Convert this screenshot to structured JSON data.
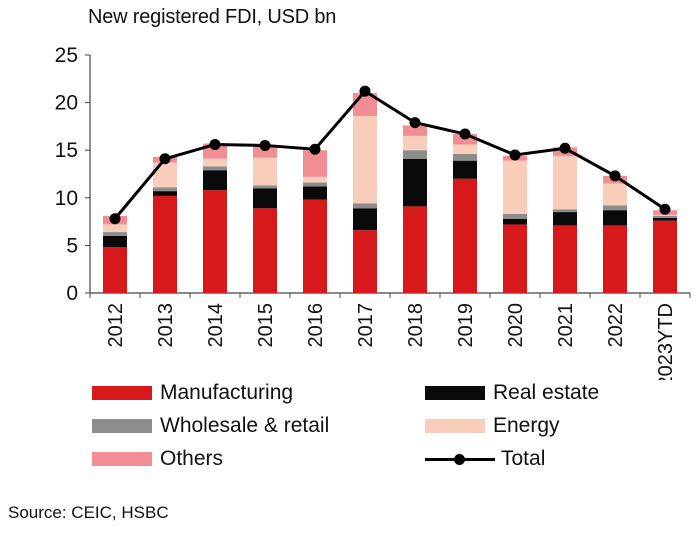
{
  "chart_data": {
    "type": "bar",
    "title": "New registered  FDI, USD bn",
    "categories": [
      "2012",
      "2013",
      "2014",
      "2015",
      "2016",
      "2017",
      "2018",
      "2019",
      "2020",
      "2021",
      "2022",
      "2023YTD"
    ],
    "ylim": [
      0,
      25
    ],
    "yticks": [
      0,
      5,
      10,
      15,
      20,
      25
    ],
    "grid": false,
    "series": [
      {
        "name": "Manufacturing",
        "kind": "bar",
        "color": "#d7191c",
        "values": [
          4.8,
          10.2,
          10.8,
          8.9,
          9.8,
          6.6,
          9.1,
          12.0,
          7.2,
          7.1,
          7.1,
          7.6
        ]
      },
      {
        "name": "Real estate",
        "kind": "bar",
        "color": "#0a0a0a",
        "values": [
          1.2,
          0.5,
          2.1,
          2.1,
          1.4,
          2.3,
          5.0,
          1.9,
          0.6,
          1.4,
          1.6,
          0.3
        ]
      },
      {
        "name": "Wholesale & retail",
        "kind": "bar",
        "color": "#8c8c8c",
        "values": [
          0.4,
          0.4,
          0.4,
          0.3,
          0.4,
          0.5,
          0.9,
          0.7,
          0.5,
          0.3,
          0.5,
          0.2
        ]
      },
      {
        "name": "Energy",
        "kind": "bar",
        "color": "#f8cdb9",
        "values": [
          0.8,
          2.6,
          0.8,
          2.9,
          0.6,
          9.2,
          1.5,
          1.0,
          5.6,
          5.6,
          2.3,
          0.1
        ]
      },
      {
        "name": "Others",
        "kind": "bar",
        "color": "#f28d94",
        "values": [
          0.9,
          0.6,
          1.6,
          1.3,
          2.8,
          2.4,
          1.1,
          1.1,
          0.5,
          0.9,
          0.8,
          0.5
        ]
      },
      {
        "name": "Total",
        "kind": "line",
        "color": "#000000",
        "values": [
          7.8,
          14.1,
          15.6,
          15.5,
          15.1,
          21.2,
          17.9,
          16.7,
          14.5,
          15.2,
          12.3,
          8.8
        ]
      }
    ]
  },
  "legend": [
    {
      "label": "Manufacturing",
      "color": "#d7191c",
      "kind": "box"
    },
    {
      "label": "Real estate",
      "color": "#0a0a0a",
      "kind": "box"
    },
    {
      "label": "Wholesale & retail",
      "color": "#8c8c8c",
      "kind": "box"
    },
    {
      "label": "Energy",
      "color": "#f8cdb9",
      "kind": "box"
    },
    {
      "label": "Others",
      "color": "#f28d94",
      "kind": "box"
    },
    {
      "label": "Total",
      "color": "#000000",
      "kind": "line"
    }
  ],
  "source": "Source: CEIC, HSBC"
}
